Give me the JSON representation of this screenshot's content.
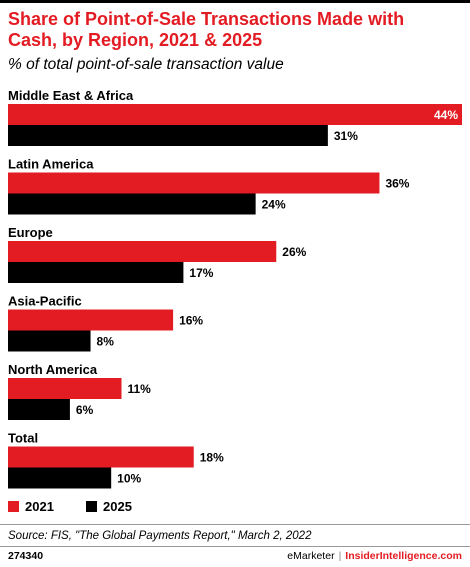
{
  "title": "Share of Point-of-Sale Transactions Made with Cash, by Region, 2021 & 2025",
  "subtitle": "% of total point-of-sale transaction value",
  "legend": {
    "items": [
      {
        "label": "2021",
        "color": "#e31c23"
      },
      {
        "label": "2025",
        "color": "#000000"
      }
    ]
  },
  "chart_data": {
    "type": "bar",
    "orientation": "horizontal",
    "categories": [
      "Middle East & Africa",
      "Latin America",
      "Europe",
      "Asia-Pacific",
      "North America",
      "Total"
    ],
    "series": [
      {
        "name": "2021",
        "color": "#e31c23",
        "values": [
          44,
          36,
          26,
          16,
          11,
          18
        ],
        "labels": [
          "44%",
          "36%",
          "26%",
          "16%",
          "11%",
          "18%"
        ]
      },
      {
        "name": "2025",
        "color": "#000000",
        "values": [
          31,
          24,
          17,
          8,
          6,
          10
        ],
        "labels": [
          "31%",
          "24%",
          "17%",
          "8%",
          "6%",
          "10%"
        ]
      }
    ],
    "xlim": [
      0,
      44
    ],
    "grid": false,
    "legend_position": "bottom-left"
  },
  "footer": {
    "source": "Source: FIS, \"The Global Payments Report,\" March 2, 2022",
    "chart_id": "274340",
    "brand_emarketer": "eMarketer",
    "brand_separator": "|",
    "brand_insider": "InsiderIntelligence.com"
  }
}
